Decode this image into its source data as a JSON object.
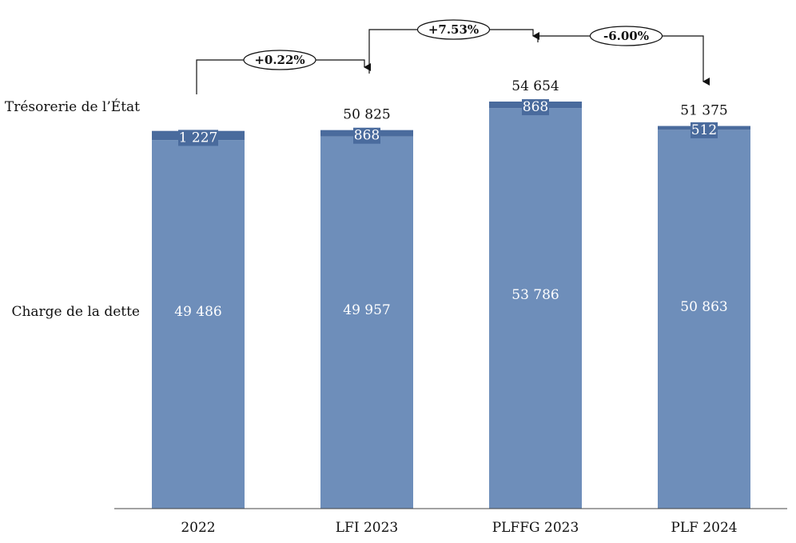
{
  "chart_data": {
    "type": "bar",
    "stacked": true,
    "categories": [
      "2022",
      "LFI 2023",
      "PLFFG 2023",
      "PLF 2024"
    ],
    "series": [
      {
        "name": "Charge de la dette",
        "values": [
          49486,
          49957,
          53786,
          50863
        ],
        "labels": [
          "49 486",
          "49 957",
          "53 786",
          "50 863"
        ],
        "color": "#6e8eba"
      },
      {
        "name": "Trésorerie de l’État",
        "values": [
          1227,
          868,
          868,
          512
        ],
        "labels": [
          "1 227",
          "868",
          "868",
          "512"
        ],
        "color": "#4a6b9d"
      }
    ],
    "totals": [
      "",
      "50 825",
      "54 654",
      "51 375"
    ],
    "changes": [
      {
        "from": 0,
        "to": 1,
        "label": "+0.22%"
      },
      {
        "from": 1,
        "to": 2,
        "label": "+7.53%"
      },
      {
        "from": 2,
        "to": 3,
        "label": "-6.00%"
      }
    ],
    "grid": false,
    "legend": "left"
  }
}
